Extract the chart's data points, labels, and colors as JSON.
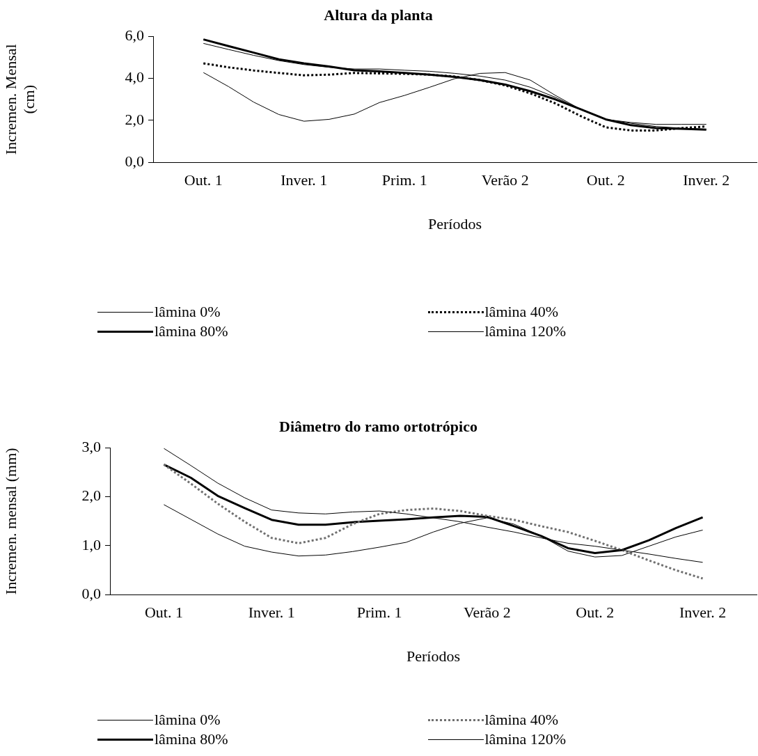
{
  "chart_data": [
    {
      "type": "line",
      "title": "Altura da planta",
      "xlabel": "Períodos",
      "ylabel": "Incremen. Mensal (cm)",
      "categories": [
        "Out. 1",
        null,
        null,
        null,
        "Inver. 1",
        null,
        null,
        null,
        "Prim. 1",
        null,
        null,
        null,
        "Verão 2",
        null,
        null,
        null,
        "Out. 2",
        null,
        null,
        null,
        "Inver. 2"
      ],
      "ylim": [
        0,
        6
      ],
      "yticks": [
        {
          "value": 0,
          "label": "0,0"
        },
        {
          "value": 2,
          "label": "2,0"
        },
        {
          "value": 4,
          "label": "4,0"
        },
        {
          "value": 6,
          "label": "6,0"
        }
      ],
      "legend": "bottom",
      "grid": false,
      "marker": "none",
      "series": [
        {
          "name": "lâmina 0%",
          "color": "#000000",
          "line_style": "solid",
          "values": [
            5.67,
            5.38,
            5.1,
            4.85,
            4.66,
            4.53,
            4.45,
            4.45,
            4.39,
            4.34,
            4.24,
            4.11,
            3.92,
            3.58,
            3.1,
            2.53,
            2.05,
            1.9,
            1.81,
            1.81,
            1.81
          ]
        },
        {
          "name": "lâmina 40%",
          "color": "#000000",
          "line_style": "dotted",
          "values": [
            4.72,
            4.53,
            4.38,
            4.26,
            4.15,
            4.18,
            4.26,
            4.24,
            4.22,
            4.18,
            4.09,
            3.92,
            3.67,
            3.29,
            2.81,
            2.21,
            1.67,
            1.52,
            1.52,
            1.63,
            1.71
          ]
        },
        {
          "name": "lâmina 80%",
          "color": "#000000",
          "line_style": "solid",
          "values": [
            5.86,
            5.54,
            5.23,
            4.91,
            4.72,
            4.57,
            4.39,
            4.34,
            4.26,
            4.18,
            4.07,
            3.92,
            3.71,
            3.39,
            3.0,
            2.53,
            2.05,
            1.77,
            1.63,
            1.6,
            1.56
          ]
        },
        {
          "name": "lâmina 120%",
          "color": "#000000",
          "line_style": "solid",
          "values": [
            4.28,
            3.61,
            2.87,
            2.28,
            1.96,
            2.05,
            2.3,
            2.85,
            3.19,
            3.58,
            3.99,
            4.24,
            4.28,
            3.92,
            3.19,
            2.53,
            2.05,
            1.86,
            1.71,
            1.63,
            1.58
          ]
        }
      ]
    },
    {
      "type": "line",
      "title": "Diâmetro do ramo ortotrópico",
      "xlabel": "Períodos",
      "ylabel": "Incremen. mensal (mm)",
      "categories": [
        "Out. 1",
        null,
        null,
        null,
        "Inver. 1",
        null,
        null,
        null,
        "Prim. 1",
        null,
        null,
        null,
        "Verão 2",
        null,
        null,
        null,
        "Out. 2",
        null,
        null,
        null,
        "Inver. 2"
      ],
      "ylim": [
        0,
        3
      ],
      "yticks": [
        {
          "value": 0,
          "label": "0,0"
        },
        {
          "value": 1,
          "label": "1,0"
        },
        {
          "value": 2,
          "label": "2,0"
        },
        {
          "value": 3,
          "label": "3,0"
        }
      ],
      "legend": "bottom",
      "grid": false,
      "marker": "none",
      "series": [
        {
          "name": "lâmina 0%",
          "color": "#000000",
          "line_style": "solid",
          "values": [
            2.99,
            2.64,
            2.28,
            1.98,
            1.73,
            1.67,
            1.65,
            1.69,
            1.71,
            1.65,
            1.57,
            1.49,
            1.38,
            1.28,
            1.16,
            1.05,
            0.99,
            0.91,
            0.83,
            0.74,
            0.66
          ]
        },
        {
          "name": "lâmina 40%",
          "color": "#707070",
          "line_style": "dotted",
          "values": [
            2.66,
            2.27,
            1.86,
            1.49,
            1.16,
            1.05,
            1.16,
            1.44,
            1.65,
            1.73,
            1.76,
            1.71,
            1.61,
            1.53,
            1.4,
            1.28,
            1.1,
            0.91,
            0.7,
            0.5,
            0.33
          ]
        },
        {
          "name": "lâmina 80%",
          "color": "#000000",
          "line_style": "solid",
          "values": [
            2.66,
            2.39,
            2.02,
            1.77,
            1.53,
            1.43,
            1.43,
            1.48,
            1.51,
            1.54,
            1.58,
            1.61,
            1.59,
            1.4,
            1.2,
            0.95,
            0.85,
            0.91,
            1.11,
            1.36,
            1.58
          ]
        },
        {
          "name": "lâmina 120%",
          "color": "#000000",
          "line_style": "solid",
          "values": [
            1.84,
            1.54,
            1.24,
            0.99,
            0.87,
            0.79,
            0.81,
            0.88,
            0.97,
            1.07,
            1.28,
            1.46,
            1.57,
            1.44,
            1.2,
            0.89,
            0.77,
            0.8,
            0.99,
            1.18,
            1.32
          ]
        }
      ]
    }
  ]
}
